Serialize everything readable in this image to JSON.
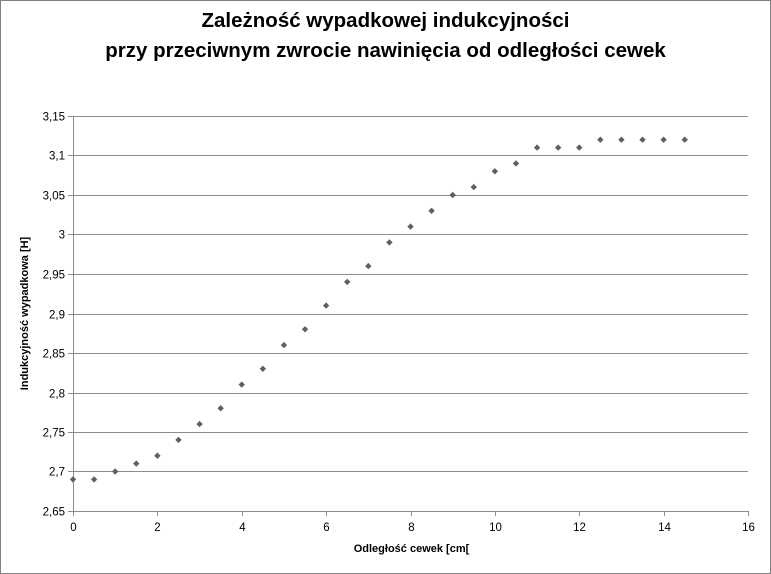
{
  "chart_data": {
    "type": "scatter",
    "title_lines": [
      "Zależność wypadkowej indukcyjności",
      "przy przeciwnym zwrocie nawinięcia od odległości cewek"
    ],
    "xlabel": "Odległość cewek [cm[",
    "ylabel": "Indukcyjność  wypadkowa  [H]",
    "xlim": [
      0,
      16
    ],
    "ylim": [
      2.65,
      3.15
    ],
    "x_ticks": [
      0,
      2,
      4,
      6,
      8,
      10,
      12,
      14,
      16
    ],
    "x_tick_labels": [
      "0",
      "2",
      "4",
      "6",
      "8",
      "10",
      "12",
      "14",
      "16"
    ],
    "y_ticks": [
      2.65,
      2.7,
      2.75,
      2.8,
      2.85,
      2.9,
      2.95,
      3.0,
      3.05,
      3.1,
      3.15
    ],
    "y_tick_labels": [
      "2,65",
      "2,7",
      "2,75",
      "2,8",
      "2,85",
      "2,9",
      "2,95",
      "3",
      "3,05",
      "3,1",
      "3,15"
    ],
    "grid": "horizontal",
    "marker": "diamond",
    "marker_color": "#606060",
    "x": [
      0,
      0.5,
      1,
      1.5,
      2,
      2.5,
      3,
      3.5,
      4,
      4.5,
      5,
      5.5,
      6,
      6.5,
      7,
      7.5,
      8,
      8.5,
      9,
      9.5,
      10,
      10.5,
      11,
      11.5,
      12,
      12.5,
      13,
      13.5,
      14,
      14.5
    ],
    "y": [
      2.69,
      2.69,
      2.7,
      2.71,
      2.72,
      2.74,
      2.76,
      2.78,
      2.81,
      2.83,
      2.86,
      2.88,
      2.91,
      2.94,
      2.96,
      2.99,
      3.01,
      3.03,
      3.05,
      3.06,
      3.08,
      3.09,
      3.11,
      3.11,
      3.11,
      3.12,
      3.12,
      3.12,
      3.12,
      3.12
    ]
  }
}
